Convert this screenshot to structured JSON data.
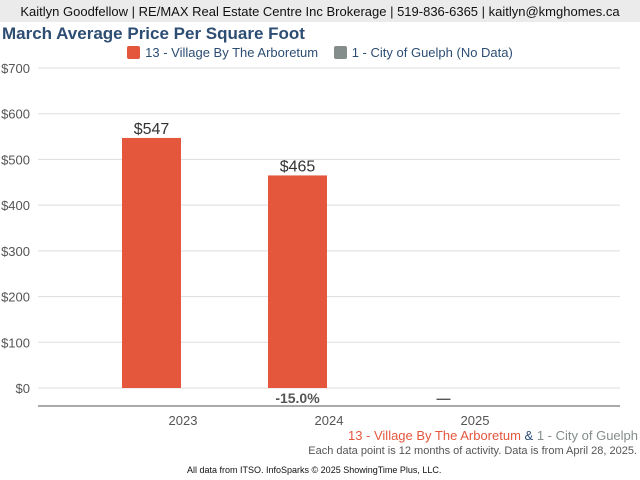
{
  "header": "Kaitlyn Goodfellow | RE/MAX Real Estate Centre Inc Brokerage | 519-836-6365 | kaitlyn@kmghomes.ca",
  "chart_data": {
    "type": "bar",
    "title": "March Average Price Per Square Foot",
    "categories": [
      "2023",
      "2024",
      "2025"
    ],
    "series": [
      {
        "name": "13 - Village By The Arboretum",
        "color": "#e4573d",
        "values": [
          547,
          465,
          null
        ],
        "labels": [
          "$547",
          "$465",
          ""
        ]
      },
      {
        "name": "1 - City of Guelph (No Data)",
        "color": "#858d8c",
        "values": [
          null,
          null,
          null
        ]
      }
    ],
    "change_labels": [
      "",
      "-15.0%",
      "—"
    ],
    "yticks": [
      "$0",
      "$100",
      "$200",
      "$300",
      "$400",
      "$500",
      "$600",
      "$700"
    ],
    "ylim": [
      0,
      700
    ],
    "grid": true,
    "legend": "top"
  },
  "footer": {
    "area1": "13 - Village By The Arboretum",
    "amp": "&",
    "area2": "1 - City of Guelph",
    "note": "Each data point is 12 months of activity. Data is from April 28, 2025.",
    "credit": "All data from ITSO. InfoSparks © 2025 ShowingTime Plus, LLC."
  }
}
